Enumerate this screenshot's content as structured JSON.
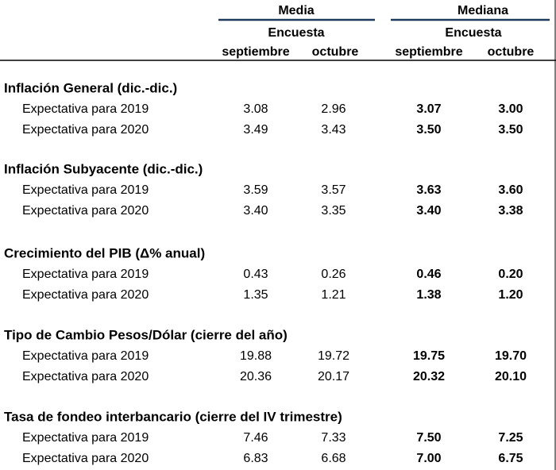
{
  "header": {
    "groups": [
      {
        "title": "Media",
        "subtitle": "Encuesta",
        "columns": [
          "septiembre",
          "octubre"
        ]
      },
      {
        "title": "Mediana",
        "subtitle": "Encuesta",
        "columns": [
          "septiembre",
          "octubre"
        ]
      }
    ]
  },
  "sections": [
    {
      "title": "Inflación General (dic.-dic.)",
      "rows": [
        {
          "label": "Expectativa para 2019",
          "values": [
            "3.08",
            "2.96",
            "3.07",
            "3.00"
          ]
        },
        {
          "label": "Expectativa para 2020",
          "values": [
            "3.49",
            "3.43",
            "3.50",
            "3.50"
          ]
        }
      ]
    },
    {
      "title": "Inflación Subyacente (dic.-dic.)",
      "rows": [
        {
          "label": "Expectativa para 2019",
          "values": [
            "3.59",
            "3.57",
            "3.63",
            "3.60"
          ]
        },
        {
          "label": "Expectativa para 2020",
          "values": [
            "3.40",
            "3.35",
            "3.40",
            "3.38"
          ]
        }
      ]
    },
    {
      "title": "Crecimiento del PIB (Δ% anual)",
      "rows": [
        {
          "label": "Expectativa para 2019",
          "values": [
            "0.43",
            "0.26",
            "0.46",
            "0.20"
          ]
        },
        {
          "label": "Expectativa para 2020",
          "values": [
            "1.35",
            "1.21",
            "1.38",
            "1.20"
          ]
        }
      ]
    },
    {
      "title": "Tipo de Cambio Pesos/Dólar (cierre del año)",
      "rows": [
        {
          "label": "Expectativa para 2019",
          "values": [
            "19.88",
            "19.72",
            "19.75",
            "19.70"
          ]
        },
        {
          "label": "Expectativa para 2020",
          "values": [
            "20.36",
            "20.17",
            "20.32",
            "20.10"
          ]
        }
      ]
    },
    {
      "title": "Tasa de fondeo interbancario (cierre del IV trimestre)",
      "rows": [
        {
          "label": "Expectativa para 2019",
          "values": [
            "7.46",
            "7.33",
            "7.50",
            "7.25"
          ]
        },
        {
          "label": "Expectativa para 2020",
          "values": [
            "6.83",
            "6.68",
            "7.00",
            "6.75"
          ]
        }
      ]
    }
  ]
}
